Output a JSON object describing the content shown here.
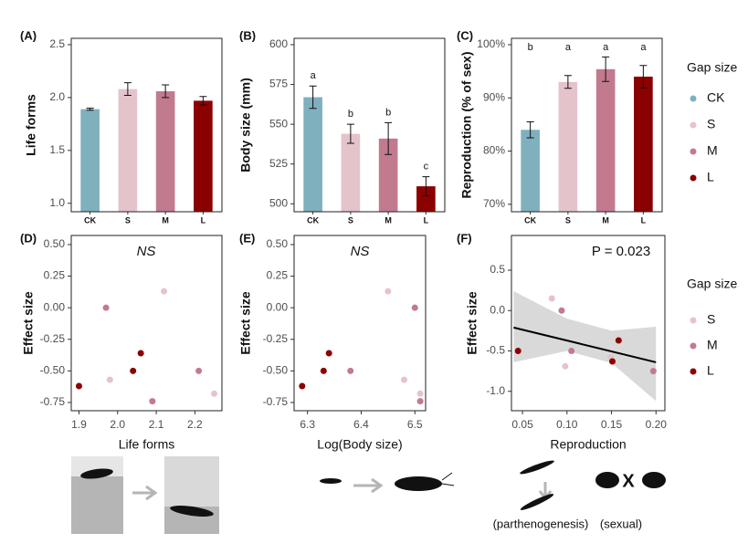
{
  "chart_data": [
    {
      "type": "bar",
      "panel_label": "(A)",
      "ylabel": "Life forms",
      "categories": [
        "CK",
        "S",
        "M",
        "L"
      ],
      "colors": [
        "#7fb0be",
        "#e5c3ca",
        "#c27a8f",
        "#8b0000"
      ],
      "values": [
        1.89,
        2.08,
        2.06,
        1.97
      ],
      "errors": [
        0.01,
        0.06,
        0.06,
        0.04
      ],
      "ylim": [
        0.92,
        2.56
      ],
      "yticks": [
        {
          "value": 1,
          "label": "1.0"
        },
        {
          "value": 1.5,
          "label": "1.5"
        },
        {
          "value": 2,
          "label": "2.0"
        },
        {
          "value": 2.5,
          "label": "2.5"
        }
      ]
    },
    {
      "type": "bar",
      "panel_label": "(B)",
      "ylabel": "Body size (mm)",
      "categories": [
        "CK",
        "S",
        "M",
        "L"
      ],
      "colors": [
        "#7fb0be",
        "#e5c3ca",
        "#c27a8f",
        "#8b0000"
      ],
      "values": [
        567,
        544,
        541,
        511
      ],
      "errors": [
        7,
        6,
        10,
        6
      ],
      "letters": [
        "a",
        "b",
        "b",
        "c"
      ],
      "ylim": [
        495,
        604
      ],
      "yticks": [
        500,
        525,
        550,
        575,
        600
      ]
    },
    {
      "type": "bar",
      "panel_label": "(C)",
      "ylabel": "Reproduction (% of sex)",
      "categories": [
        "CK",
        "S",
        "M",
        "L"
      ],
      "colors": [
        "#7fb0be",
        "#e5c3ca",
        "#c27a8f",
        "#8b0000"
      ],
      "values": [
        84,
        93,
        95.4,
        94
      ],
      "errors": [
        1.5,
        1.2,
        2.3,
        2.1
      ],
      "letters": [
        "b",
        "a",
        "a",
        "a"
      ],
      "ylim": [
        68.6,
        101.2
      ],
      "yticks": [
        {
          "value": 70,
          "label": "70%"
        },
        {
          "value": 80,
          "label": "80%"
        },
        {
          "value": 90,
          "label": "90%"
        },
        {
          "value": 100,
          "label": "100%"
        }
      ],
      "legend_title": "Gap size"
    },
    {
      "type": "scatter",
      "panel_label": "(D)",
      "xlabel": "Life forms",
      "ylabel": "Effect size",
      "annotation": "NS",
      "xlim": [
        1.88,
        2.27
      ],
      "xticks": [
        1.9,
        {
          "value": 2,
          "label": "2.0"
        },
        2.1,
        2.2
      ],
      "ylim": [
        -0.815,
        0.572
      ],
      "yticks": [
        {
          "value": -0.75,
          "label": "-0.75"
        },
        {
          "value": -0.5,
          "label": "-0.50"
        },
        {
          "value": -0.25,
          "label": "-0.25"
        },
        {
          "value": 0,
          "label": "0.00"
        },
        {
          "value": 0.25,
          "label": "0.25"
        },
        {
          "value": 0.5,
          "label": "0.50"
        }
      ],
      "series": [
        {
          "name": "S",
          "color": "#e5c3ca",
          "x": [
            1.98,
            2.12,
            2.25
          ],
          "y": [
            -0.57,
            0.13,
            -0.68
          ]
        },
        {
          "name": "M",
          "color": "#c27a8f",
          "x": [
            1.97,
            2.09,
            2.21
          ],
          "y": [
            0,
            -0.74,
            -0.5
          ]
        },
        {
          "name": "L",
          "color": "#8b0000",
          "x": [
            1.9,
            2.04,
            2.06
          ],
          "y": [
            -0.62,
            -0.5,
            -0.36
          ]
        }
      ]
    },
    {
      "type": "scatter",
      "panel_label": "(E)",
      "xlabel": "Log(Body size)",
      "ylabel": "Effect size",
      "annotation": "NS",
      "xlim": [
        6.275,
        6.52
      ],
      "xticks": [
        6.3,
        6.4,
        6.5
      ],
      "ylim": [
        -0.815,
        0.572
      ],
      "yticks": [
        {
          "value": -0.75,
          "label": "-0.75"
        },
        {
          "value": -0.5,
          "label": "-0.50"
        },
        {
          "value": -0.25,
          "label": "-0.25"
        },
        {
          "value": 0,
          "label": "0.00"
        },
        {
          "value": 0.25,
          "label": "0.25"
        },
        {
          "value": 0.5,
          "label": "0.50"
        }
      ],
      "series": [
        {
          "name": "S",
          "color": "#e5c3ca",
          "x": [
            6.45,
            6.48,
            6.51
          ],
          "y": [
            0.13,
            -0.57,
            -0.68
          ]
        },
        {
          "name": "M",
          "color": "#c27a8f",
          "x": [
            6.38,
            6.5,
            6.51
          ],
          "y": [
            -0.5,
            0,
            -0.74
          ]
        },
        {
          "name": "L",
          "color": "#8b0000",
          "x": [
            6.29,
            6.33,
            6.34
          ],
          "y": [
            -0.62,
            -0.5,
            -0.36
          ]
        }
      ]
    },
    {
      "type": "scatter",
      "panel_label": "(F)",
      "xlabel": "Reproduction",
      "ylabel": "Effect size",
      "annotation": "P = 0.023",
      "xlim": [
        0.0376,
        0.21
      ],
      "xticks": [
        0.05,
        {
          "value": 0.1,
          "label": "0.10"
        },
        0.15,
        {
          "value": 0.2,
          "label": "0.20"
        }
      ],
      "ylim": [
        -1.24,
        0.93
      ],
      "yticks": [
        {
          "value": -1,
          "label": "-1.0"
        },
        {
          "value": -0.5,
          "label": "-0.5"
        },
        {
          "value": 0,
          "label": "0.0"
        },
        0.5
      ],
      "series": [
        {
          "name": "S",
          "color": "#e5c3ca",
          "x": [
            0.083,
            0.098,
            0.149
          ],
          "y": [
            0.15,
            -0.69,
            -0.58
          ]
        },
        {
          "name": "M",
          "color": "#c27a8f",
          "x": [
            0.094,
            0.105,
            0.197
          ],
          "y": [
            0,
            -0.5,
            -0.75
          ]
        },
        {
          "name": "L",
          "color": "#8b0000",
          "x": [
            0.045,
            0.151,
            0.158
          ],
          "y": [
            -0.5,
            -0.63,
            -0.37
          ]
        }
      ],
      "fit": {
        "x": [
          0.04,
          0.2
        ],
        "y": [
          -0.21,
          -0.64
        ]
      },
      "band": {
        "x": [
          0.04,
          0.1,
          0.15,
          0.2
        ],
        "upper": [
          0.24,
          -0.1,
          -0.25,
          -0.2
        ],
        "lower": [
          -0.64,
          -0.5,
          -0.65,
          -1.12
        ]
      },
      "legend_title": "Gap size"
    }
  ],
  "illustration_labels": [
    "(parthenogenesis)",
    "X",
    "(sexual)"
  ]
}
